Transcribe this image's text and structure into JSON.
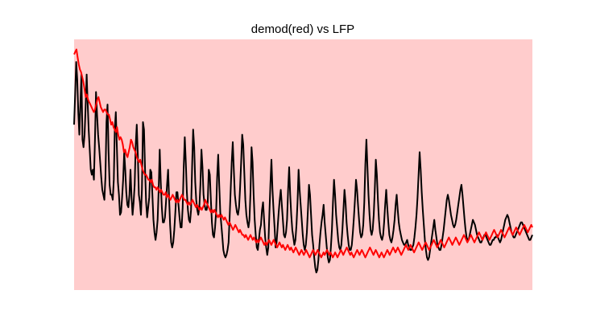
{
  "chart_data": {
    "type": "line",
    "title": "demod(red) vs LFP",
    "xlabel": "",
    "ylabel": "",
    "x_ticks_visible": false,
    "y_ticks_visible": false,
    "grid": false,
    "xlim": [
      0,
      189
    ],
    "ylim": [
      0,
      100
    ],
    "plot_background": "#ffcccc",
    "series": [
      {
        "color": "#000000",
        "values": [
          66,
          78,
          91,
          84,
          71,
          62,
          74,
          86,
          60,
          57,
          62,
          73,
          86,
          75,
          64,
          56,
          48,
          46,
          48,
          44,
          60,
          79,
          70,
          62,
          57,
          51,
          45,
          40,
          38,
          36,
          45,
          67,
          74,
          55,
          42,
          38,
          38,
          36,
          44,
          64,
          71,
          57,
          43,
          38,
          30,
          31,
          37,
          44,
          55,
          48,
          39,
          34,
          33,
          38,
          48,
          37,
          30,
          35,
          42,
          58,
          66,
          54,
          38,
          35,
          30,
          40,
          67,
          64,
          48,
          35,
          29,
          33,
          37,
          48,
          47,
          38,
          28,
          23,
          20,
          23,
          28,
          40,
          56,
          43,
          33,
          27,
          27,
          29,
          35,
          42,
          48,
          37,
          26,
          19,
          17,
          19,
          24,
          31,
          39,
          39,
          34,
          29,
          25,
          25,
          33,
          49,
          61,
          51,
          39,
          32,
          28,
          27,
          32,
          49,
          64,
          57,
          43,
          36,
          32,
          30,
          33,
          42,
          56,
          49,
          38,
          34,
          32,
          32,
          35,
          48,
          46,
          36,
          27,
          22,
          21,
          25,
          31,
          45,
          54,
          42,
          31,
          26,
          21,
          16,
          14,
          13,
          14,
          16,
          19,
          29,
          40,
          51,
          59,
          48,
          38,
          34,
          31,
          30,
          33,
          41,
          51,
          62,
          58,
          47,
          36,
          30,
          27,
          25,
          28,
          39,
          57,
          51,
          38,
          28,
          22,
          17,
          16,
          20,
          24,
          26,
          32,
          35,
          28,
          21,
          17,
          14,
          17,
          30,
          42,
          52,
          40,
          32,
          25,
          17,
          19,
          25,
          31,
          36,
          40,
          34,
          28,
          22,
          21,
          23,
          28,
          40,
          49,
          38,
          30,
          24,
          21,
          18,
          20,
          26,
          35,
          48,
          40,
          34,
          28,
          22,
          18,
          16,
          18,
          23,
          32,
          42,
          38,
          30,
          22,
          18,
          13,
          9,
          7,
          8,
          12,
          18,
          23,
          27,
          30,
          34,
          27,
          22,
          17,
          13,
          11,
          12,
          17,
          24,
          35,
          44,
          38,
          30,
          25,
          20,
          17,
          16,
          18,
          24,
          32,
          40,
          35,
          27,
          22,
          18,
          16,
          16,
          18,
          23,
          29,
          36,
          44,
          40,
          34,
          28,
          23,
          21,
          22,
          26,
          35,
          50,
          60,
          49,
          38,
          30,
          24,
          22,
          24,
          30,
          40,
          52,
          46,
          36,
          28,
          23,
          21,
          20,
          22,
          27,
          34,
          40,
          33,
          27,
          22,
          20,
          19,
          21,
          24,
          28,
          34,
          38,
          32,
          27,
          24,
          22,
          20,
          19,
          18,
          18,
          19,
          20,
          18,
          17,
          16,
          16,
          17,
          18,
          21,
          25,
          30,
          37,
          46,
          55,
          48,
          39,
          32,
          26,
          20,
          16,
          13,
          12,
          13,
          16,
          19,
          22,
          25,
          28,
          24,
          21,
          18,
          17,
          16,
          16,
          18,
          21,
          24,
          28,
          32,
          36,
          38,
          36,
          33,
          30,
          28,
          26,
          25,
          26,
          28,
          31,
          34,
          37,
          40,
          42,
          38,
          33,
          28,
          24,
          21,
          20,
          20,
          22,
          24,
          26,
          28,
          27,
          26,
          24,
          22,
          21,
          20,
          19,
          19,
          20,
          21,
          22,
          22,
          21,
          20,
          19,
          18,
          18,
          19,
          20,
          20,
          21,
          21,
          22,
          21,
          20,
          19,
          20,
          22,
          24,
          26,
          28,
          29,
          30,
          29,
          27,
          25,
          23,
          22,
          21,
          21,
          22,
          23,
          24,
          25,
          26,
          27,
          27,
          26,
          25,
          24,
          23,
          22,
          21,
          20,
          20,
          21,
          22
        ]
      },
      {
        "color": "#ff0000",
        "values": [
          94,
          95,
          96,
          93,
          90,
          88,
          87,
          85,
          83,
          80,
          77,
          78,
          76,
          75,
          74,
          73,
          72,
          71,
          72,
          74,
          76,
          77,
          75,
          73,
          72,
          71,
          72,
          72,
          71,
          70,
          70,
          68,
          66,
          67,
          65,
          64,
          63,
          65,
          62,
          60,
          61,
          60,
          58,
          55,
          56,
          54,
          53,
          55,
          57,
          60,
          59,
          57,
          56,
          55,
          53,
          52,
          51,
          52,
          50,
          48,
          47,
          46,
          46,
          45,
          44,
          44,
          43,
          44,
          42,
          41,
          41,
          40,
          41,
          40,
          39,
          40,
          39,
          38,
          38,
          39,
          37,
          38,
          37,
          36,
          37,
          38,
          37,
          36,
          35,
          36,
          35,
          36,
          37,
          38,
          37,
          36,
          36,
          35,
          34,
          35,
          34,
          35,
          36,
          35,
          34,
          33,
          34,
          33,
          32,
          33,
          32,
          33,
          34,
          36,
          35,
          34,
          33,
          32,
          31,
          32,
          31,
          32,
          31,
          30,
          29,
          30,
          29,
          30,
          29,
          28,
          29,
          28,
          27,
          26,
          27,
          26,
          25,
          24,
          25,
          26,
          25,
          24,
          23,
          24,
          23,
          22,
          22,
          21,
          22,
          21,
          20,
          21,
          22,
          21,
          20,
          21,
          20,
          19,
          20,
          19,
          20,
          21,
          20,
          19,
          18,
          19,
          18,
          19,
          20,
          19,
          18,
          19,
          20,
          19,
          18,
          17,
          18,
          19,
          18,
          17,
          18,
          17,
          16,
          17,
          18,
          17,
          16,
          17,
          16,
          15,
          16,
          17,
          16,
          15,
          14,
          15,
          16,
          15,
          14,
          15,
          16,
          15,
          14,
          13,
          14,
          15,
          16,
          15,
          14,
          15,
          16,
          15,
          14,
          13,
          14,
          15,
          14,
          15,
          16,
          15,
          14,
          15,
          14,
          13,
          14,
          15,
          14,
          13,
          14,
          15,
          16,
          15,
          14,
          15,
          16,
          17,
          16,
          15,
          14,
          15,
          14,
          13,
          14,
          15,
          16,
          15,
          14,
          15,
          16,
          15,
          14,
          13,
          14,
          15,
          16,
          17,
          16,
          15,
          14,
          15,
          16,
          15,
          14,
          13,
          14,
          15,
          14,
          13,
          14,
          15,
          16,
          15,
          14,
          15,
          16,
          17,
          16,
          15,
          16,
          17,
          16,
          15,
          14,
          15,
          16,
          17,
          18,
          17,
          16,
          17,
          18,
          17,
          16,
          15,
          16,
          17,
          18,
          19,
          18,
          17,
          16,
          17,
          18,
          19,
          18,
          17,
          16,
          17,
          18,
          19,
          20,
          19,
          18,
          17,
          18,
          19,
          20,
          19,
          18,
          17,
          18,
          19,
          20,
          21,
          20,
          19,
          18,
          19,
          20,
          21,
          20,
          19,
          18,
          19,
          20,
          21,
          22,
          21,
          20,
          19,
          20,
          21,
          22,
          21,
          20,
          19,
          20,
          21,
          22,
          23,
          22,
          21,
          20,
          21,
          22,
          23,
          22,
          21,
          20,
          21,
          22,
          23,
          24,
          23,
          22,
          21,
          22,
          23,
          24,
          23,
          22,
          21,
          22,
          23,
          24,
          25,
          24,
          23,
          22,
          23,
          24,
          25,
          24,
          23,
          22,
          23,
          24,
          25,
          26,
          25,
          24,
          23,
          24,
          25,
          26,
          25
        ]
      }
    ]
  }
}
